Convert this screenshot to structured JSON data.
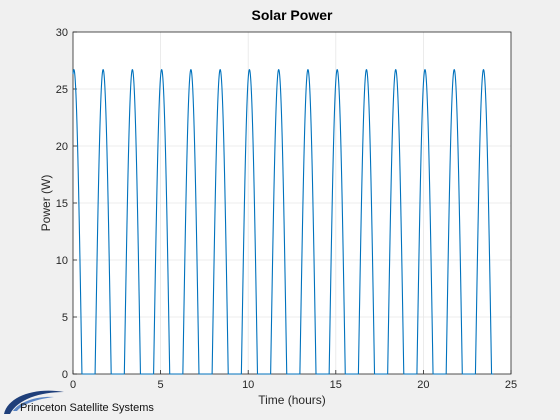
{
  "chart_data": {
    "type": "line",
    "title": "Solar Power",
    "xlabel": "Time (hours)",
    "ylabel": "Power (W)",
    "xlim": [
      0,
      25
    ],
    "ylim": [
      0,
      30
    ],
    "xticks": [
      0,
      5,
      10,
      15,
      20,
      25
    ],
    "yticks": [
      0,
      5,
      10,
      15,
      20,
      25,
      30
    ],
    "grid": true,
    "legend": "none",
    "series": [
      {
        "color": "#0072bd",
        "peak_power": 26.7,
        "period_hours": 1.67,
        "daylight_hours": 0.92,
        "first_peak_hours": 0.05,
        "end_hours": 24.0
      }
    ]
  },
  "logo": {
    "text": "Princeton Satellite Systems",
    "color": "#1f3f7a"
  }
}
